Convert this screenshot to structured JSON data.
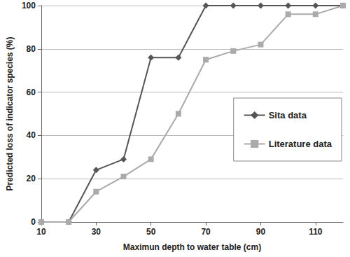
{
  "chart_data": {
    "type": "line",
    "x_label": "Maximun depth to water table (cm)",
    "y_label": "Predicted loss of indicator species (%)",
    "x": [
      10,
      20,
      30,
      40,
      50,
      60,
      70,
      80,
      90,
      100,
      110,
      120
    ],
    "series": [
      {
        "name": "Sita data",
        "color": "#555555",
        "marker": "diamond",
        "values": [
          0,
          0,
          24,
          29,
          76,
          76,
          100,
          100,
          100,
          100,
          100,
          100
        ]
      },
      {
        "name": "Literature data",
        "color": "#aaaaaa",
        "marker": "square",
        "values": [
          0,
          0,
          14,
          21,
          29,
          50,
          75,
          79,
          82,
          96,
          96,
          100
        ]
      }
    ],
    "xlim": [
      10,
      120
    ],
    "xticks": [
      10,
      30,
      50,
      70,
      90,
      110
    ],
    "ylim": [
      0,
      100
    ],
    "yticks": [
      0,
      20,
      40,
      60,
      80,
      100
    ],
    "grid": true,
    "legend": "right"
  }
}
